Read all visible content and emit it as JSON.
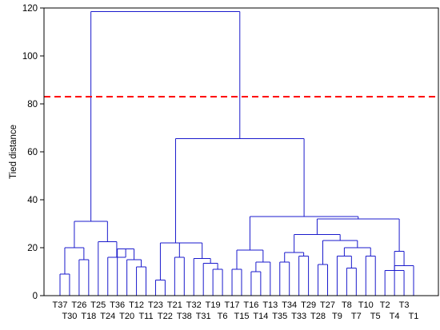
{
  "chart_data": {
    "type": "dendrogram",
    "title": "",
    "xlabel": "",
    "ylabel": "Tied distance",
    "ylim": [
      0,
      120
    ],
    "yticks": [
      0,
      20,
      40,
      60,
      80,
      100,
      120
    ],
    "grid": false,
    "cutoff_line": {
      "value": 83,
      "color": "#ff0000",
      "style": "dashed"
    },
    "leaves": [
      "T37",
      "T30",
      "T26",
      "T18",
      "T25",
      "T24",
      "T36",
      "T20",
      "T12",
      "T11",
      "T23",
      "T22",
      "T21",
      "T38",
      "T32",
      "T31",
      "T19",
      "T6",
      "T17",
      "T15",
      "T16",
      "T14",
      "T13",
      "T35",
      "T34",
      "T33",
      "T29",
      "T28",
      "T27",
      "T9",
      "T8",
      "T7",
      "T10",
      "T5",
      "T2",
      "T4",
      "T3",
      "T1"
    ],
    "merges": [
      {
        "a": "T37",
        "b": "T30",
        "height": 9
      },
      {
        "a": "T26",
        "b": "T18",
        "height": 15
      },
      {
        "a": "c0",
        "b": "c1",
        "height": 20
      },
      {
        "a": "T12",
        "b": "T11",
        "height": 12
      },
      {
        "a": "T20",
        "b": "c3",
        "height": 15
      },
      {
        "a": "T36",
        "b": "c4",
        "height": 19.5
      },
      {
        "a": "T24",
        "b": "c5",
        "height": 16
      },
      {
        "a": "T25",
        "b": "c6",
        "height": 22.5
      },
      {
        "a": "c2",
        "b": "c7",
        "height": 31
      },
      {
        "a": "T23",
        "b": "T22",
        "height": 6.5
      },
      {
        "a": "T21",
        "b": "T38",
        "height": 16
      },
      {
        "a": "T19",
        "b": "T6",
        "height": 11
      },
      {
        "a": "T31",
        "b": "c11",
        "height": 13.5
      },
      {
        "a": "T32",
        "b": "c12",
        "height": 15.5
      },
      {
        "a": "c10",
        "b": "c13",
        "height": 22
      },
      {
        "a": "c9",
        "b": "c14",
        "height": 22
      },
      {
        "a": "T16",
        "b": "T14",
        "height": 10
      },
      {
        "a": "T13",
        "b": "c16",
        "height": 14
      },
      {
        "a": "T17",
        "b": "T15",
        "height": 11
      },
      {
        "a": "c18",
        "b": "c17",
        "height": 19
      },
      {
        "a": "T35",
        "b": "T34",
        "height": 14
      },
      {
        "a": "T33",
        "b": "T29",
        "height": 16.5
      },
      {
        "a": "c20",
        "b": "c21",
        "height": 18
      },
      {
        "a": "T28",
        "b": "T27",
        "height": 13
      },
      {
        "a": "T8",
        "b": "T7",
        "height": 11.5
      },
      {
        "a": "T9",
        "b": "c24",
        "height": 16.5
      },
      {
        "a": "T10",
        "b": "T5",
        "height": 16.5
      },
      {
        "a": "c25",
        "b": "c26",
        "height": 20
      },
      {
        "a": "c23",
        "b": "c27",
        "height": 23
      },
      {
        "a": "c22",
        "b": "c28",
        "height": 25.5
      },
      {
        "a": "T4",
        "b": "T1",
        "height": 12.5
      },
      {
        "a": "T2",
        "b": "T3",
        "height": 10.5
      },
      {
        "a": "c31",
        "b": "c30",
        "height": 18.5
      },
      {
        "a": "c29",
        "b": "c32",
        "height": 32
      },
      {
        "a": "c19",
        "b": "c33",
        "height": 33
      },
      {
        "a": "c15",
        "b": "c34",
        "height": 65.5
      },
      {
        "a": "c8",
        "b": "c35",
        "height": 118.5
      }
    ],
    "colors": {
      "tree": "#1a1acc",
      "axis": "#000000"
    }
  }
}
